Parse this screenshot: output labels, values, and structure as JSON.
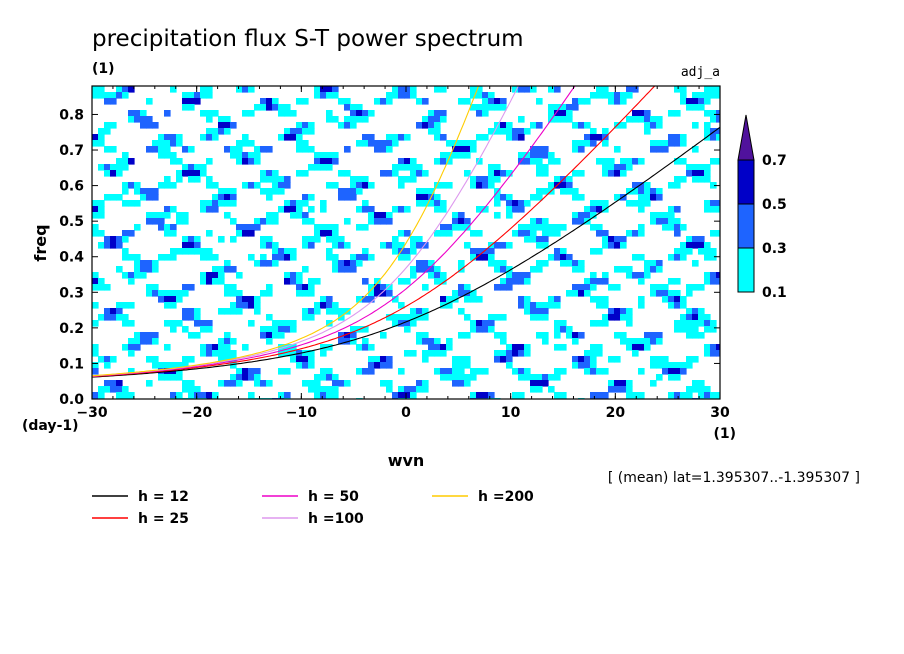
{
  "chart_data": {
    "type": "heatmap",
    "title": "precipitation flux S-T power spectrum",
    "subtitle_units": "(1)",
    "tag": "adj_a",
    "xlabel": "wvn",
    "ylabel": "freq",
    "x_units": "(1)",
    "y_units": "(day-1)",
    "xlim": [
      -30,
      30
    ],
    "ylim": [
      0,
      0.88
    ],
    "x_ticks": [
      "-30",
      "-20",
      "-10",
      "0",
      "10",
      "20",
      "30"
    ],
    "y_ticks": [
      "0.0",
      "0.1",
      "0.2",
      "0.3",
      "0.4",
      "0.5",
      "0.6",
      "0.7",
      "0.8"
    ],
    "colorbar": {
      "levels": [
        "0.1",
        "0.3",
        "0.5",
        "0.7"
      ],
      "colors": [
        "#00ffff",
        "#1e64ff",
        "#0000c8",
        "#50129c"
      ]
    },
    "note": "[ (mean) lat=1.395307..-1.395307 ]",
    "series": [
      {
        "name": "h = 12",
        "h": 12,
        "color": "#000000"
      },
      {
        "name": "h = 25",
        "h": 25,
        "color": "#ff0000"
      },
      {
        "name": "h = 50",
        "h": 50,
        "color": "#ee00c8"
      },
      {
        "name": "h =100",
        "h": 100,
        "color": "#dd99ee"
      },
      {
        "name": "h =200",
        "h": 200,
        "color": "#ffcc00"
      }
    ],
    "grid": false
  }
}
